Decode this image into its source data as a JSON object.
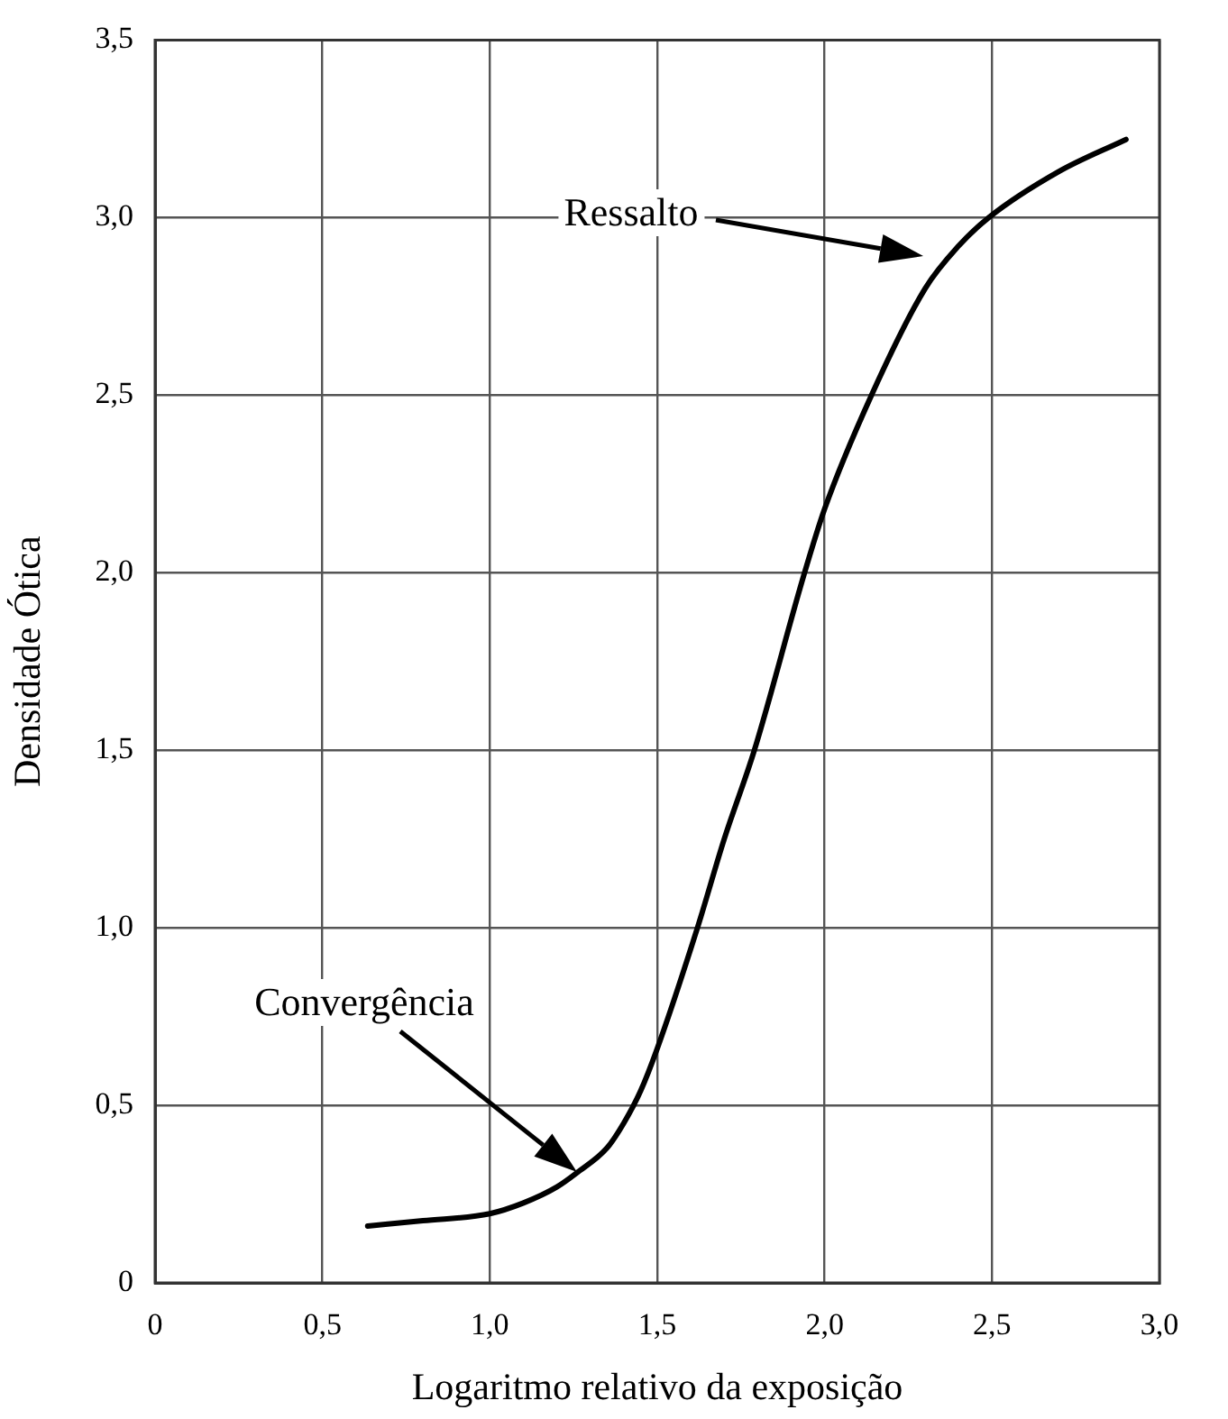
{
  "chart_data": {
    "type": "line",
    "xlabel": "Logaritmo relativo da exposição",
    "ylabel": "Densidade Ótica",
    "x": [
      0.635,
      0.8,
      1.0,
      1.1,
      1.2,
      1.26,
      1.35,
      1.4,
      1.45,
      1.5,
      1.62,
      1.7,
      1.79,
      1.94,
      2.0,
      2.14,
      2.3,
      2.4,
      2.49,
      2.7,
      2.9
    ],
    "series": [
      {
        "color": "#000000",
        "values": [
          0.16,
          0.175,
          0.195,
          0.225,
          0.27,
          0.31,
          0.38,
          0.45,
          0.54,
          0.66,
          1.0,
          1.25,
          1.5,
          2.0,
          2.18,
          2.5,
          2.8,
          2.92,
          3.0,
          3.13,
          3.22
        ]
      }
    ],
    "xlim": [
      0,
      3
    ],
    "ylim": [
      0,
      3.5
    ],
    "xticks": [
      0,
      {
        "value": 0.5,
        "label": "0,5"
      },
      {
        "value": 1,
        "label": "1,0"
      },
      {
        "value": 1.5,
        "label": "1,5"
      },
      {
        "value": 2,
        "label": "2,0"
      },
      {
        "value": 2.5,
        "label": "2,5"
      },
      {
        "value": 3,
        "label": "3,0"
      }
    ],
    "yticks": [
      0,
      {
        "value": 0.5,
        "label": "0,5"
      },
      {
        "value": 1,
        "label": "1,0"
      },
      {
        "value": 1.5,
        "label": "1,5"
      },
      {
        "value": 2,
        "label": "2,0"
      },
      {
        "value": 2.5,
        "label": "2,5"
      },
      {
        "value": 3,
        "label": "3,0"
      },
      {
        "value": 3.5,
        "label": "3,5"
      }
    ],
    "grid": true,
    "legend": false,
    "marker": "none",
    "line_style": "solid",
    "annotations": [
      "Ressalto",
      "Convergência"
    ]
  }
}
